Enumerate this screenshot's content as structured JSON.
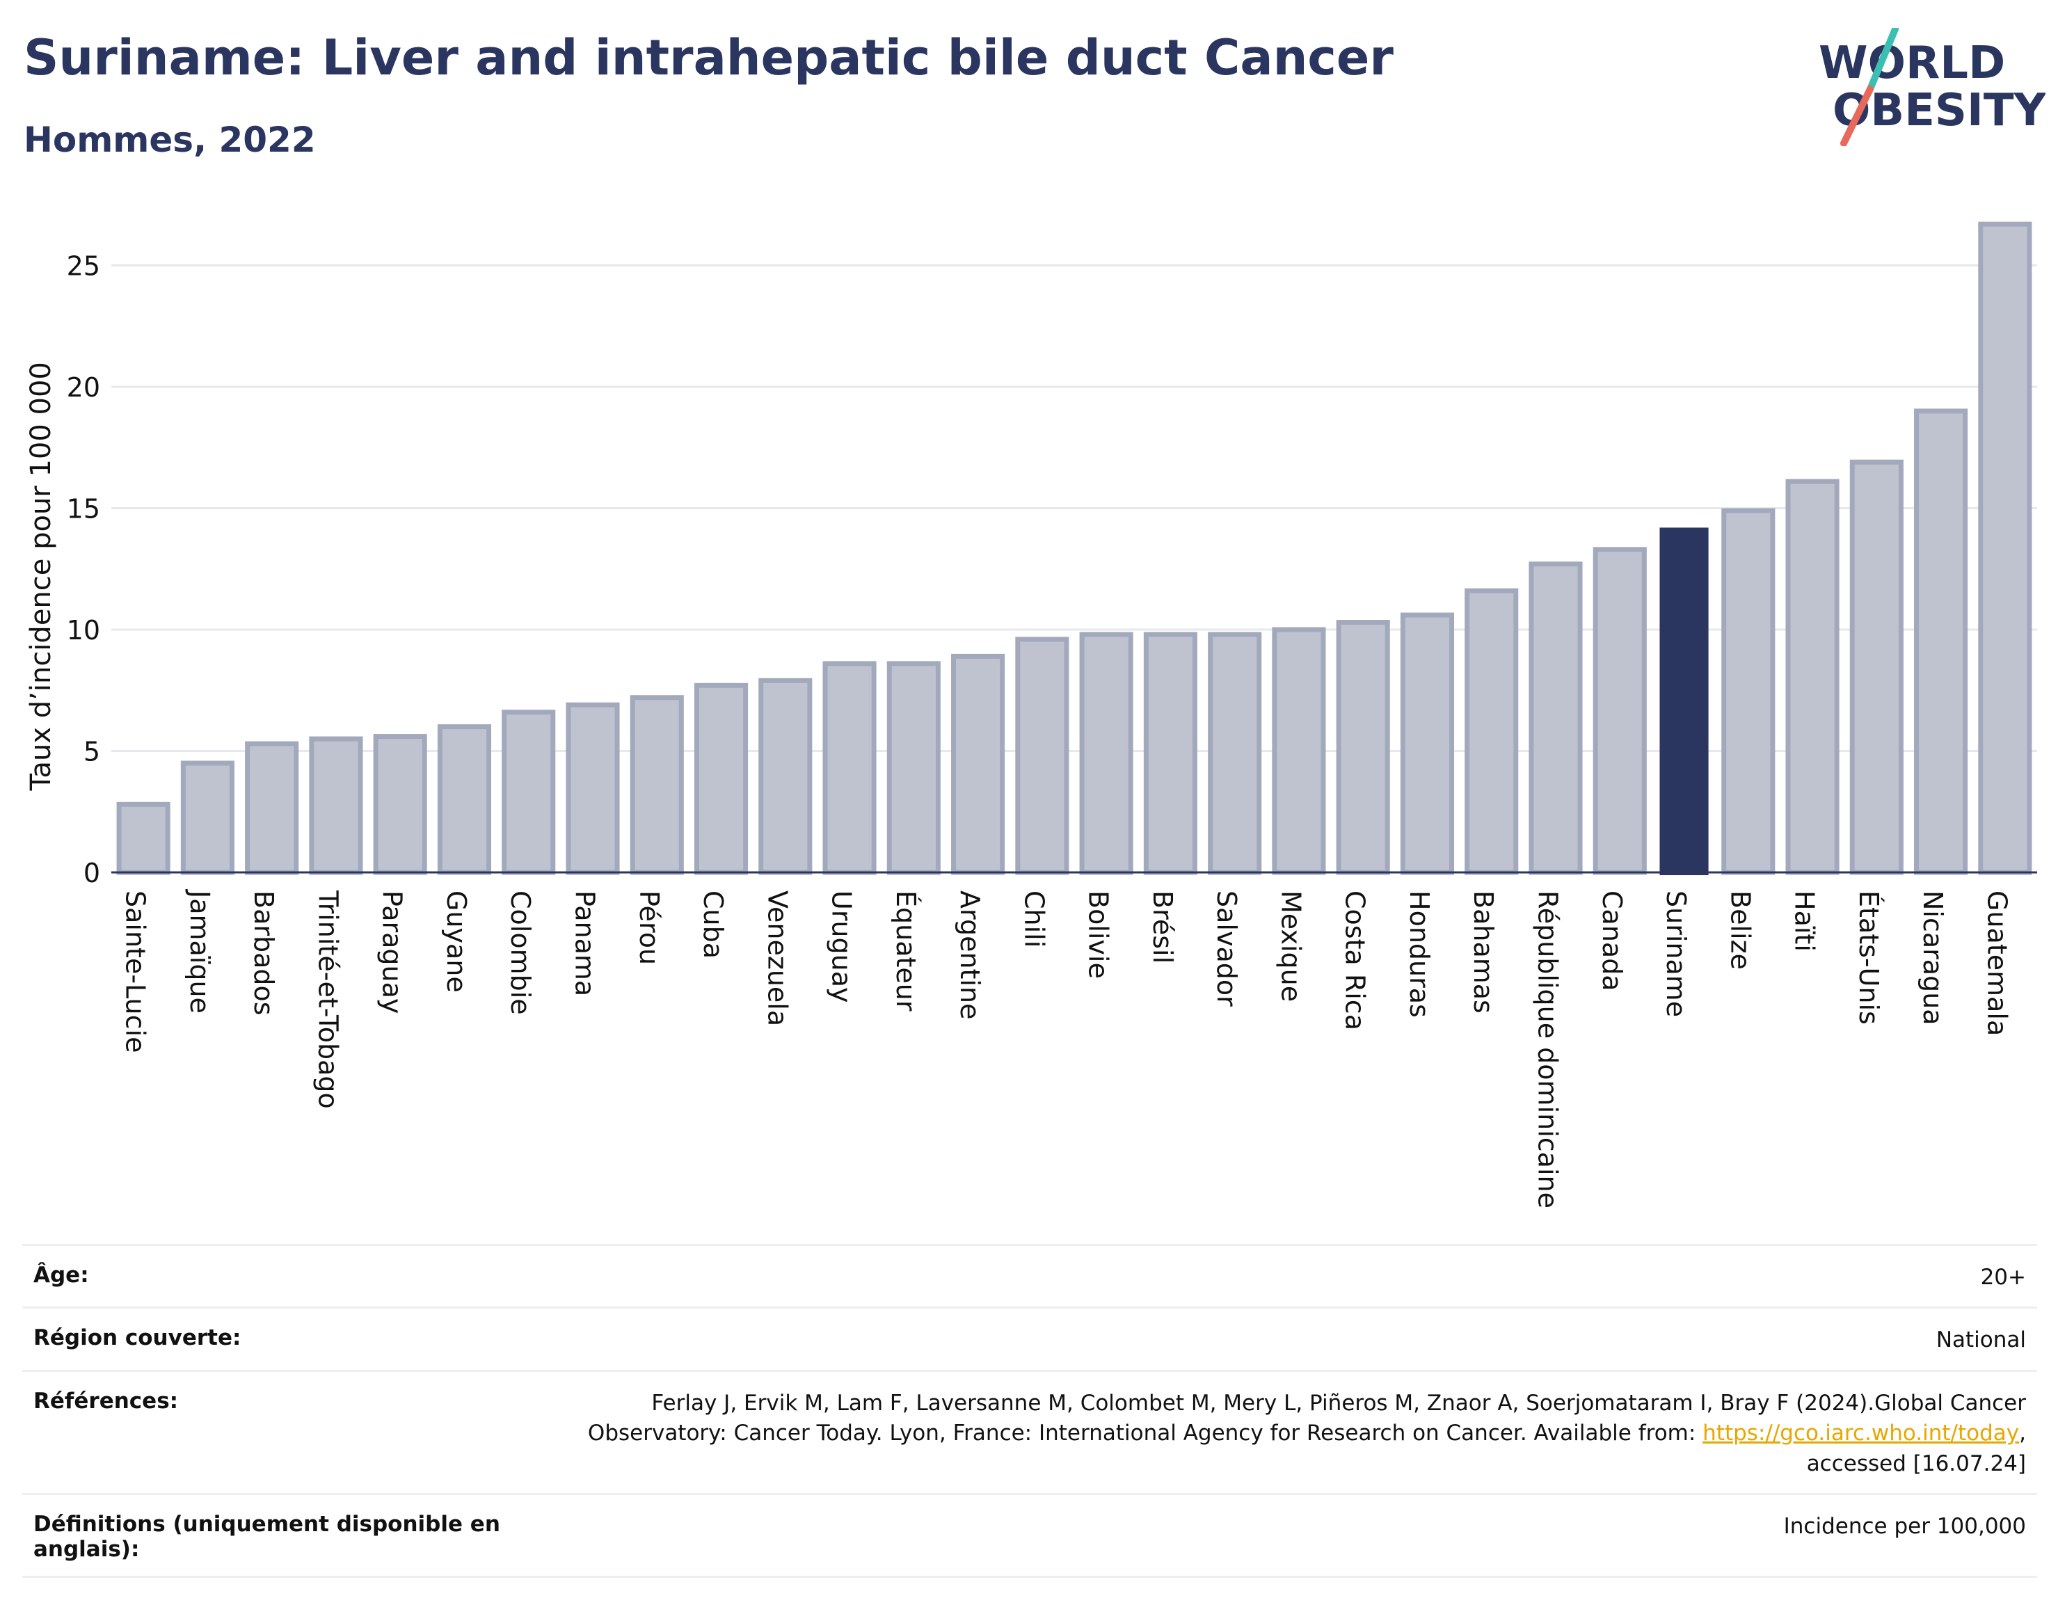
{
  "header": {
    "title": "Suriname: Liver and intrahepatic bile duct Cancer",
    "subtitle": "Hommes, 2022"
  },
  "logo": {
    "line1": "WORLD",
    "line2": "OBESITY",
    "text_color": "#2a3560",
    "slash_colors": [
      "#3bbfb2",
      "#e8685a"
    ]
  },
  "chart_data": {
    "type": "bar",
    "ylabel": "Taux d’incidence pour 100 000",
    "xlabel": "",
    "ylim": [
      0,
      27
    ],
    "yticks": [
      0,
      5,
      10,
      15,
      20,
      25
    ],
    "grid": true,
    "highlight": "Suriname",
    "colors": {
      "bar": "#bfc3d0",
      "bar_border": "#a3a9bd",
      "highlight": "#2a3560",
      "grid": "#e6e8ee",
      "axis": "#2a3560"
    },
    "categories": [
      "Sainte-Lucie",
      "Jamaïque",
      "Barbados",
      "Trinité-et-Tobago",
      "Paraguay",
      "Guyane",
      "Colombie",
      "Panama",
      "Pérou",
      "Cuba",
      "Venezuela",
      "Uruguay",
      "Équateur",
      "Argentine",
      "Chili",
      "Bolivie",
      "Brésil",
      "Salvador",
      "Mexique",
      "Costa Rica",
      "Honduras",
      "Bahamas",
      "République dominicaine",
      "Canada",
      "Suriname",
      "Belize",
      "Haïti",
      "États-Unis",
      "Nicaragua",
      "Guatemala"
    ],
    "values": [
      2.8,
      4.5,
      5.3,
      5.5,
      5.6,
      6.0,
      6.6,
      6.9,
      7.2,
      7.7,
      7.9,
      8.6,
      8.6,
      8.9,
      9.6,
      9.8,
      9.8,
      9.8,
      10.0,
      10.3,
      10.6,
      11.6,
      12.7,
      13.3,
      14.2,
      14.9,
      16.1,
      16.9,
      19.0,
      26.7
    ]
  },
  "meta": {
    "rows": [
      {
        "key": "Âge:",
        "value": "20+"
      },
      {
        "key": "Région couverte:",
        "value": "National"
      },
      {
        "key": "Références:",
        "value_pre": "Ferlay J, Ervik M, Lam F, Laversanne M, Colombet M, Mery L, Piñeros M, Znaor A, Soerjomataram I, Bray F (2024).Global Cancer Observatory: Cancer Today. Lyon, France: International Agency for Research on Cancer. Available from: ",
        "link": "https://gco.iarc.who.int/today",
        "value_post": ", accessed [16.07.24]"
      },
      {
        "key": "Définitions (uniquement disponible en anglais):",
        "value": "Incidence per 100,000"
      }
    ]
  }
}
